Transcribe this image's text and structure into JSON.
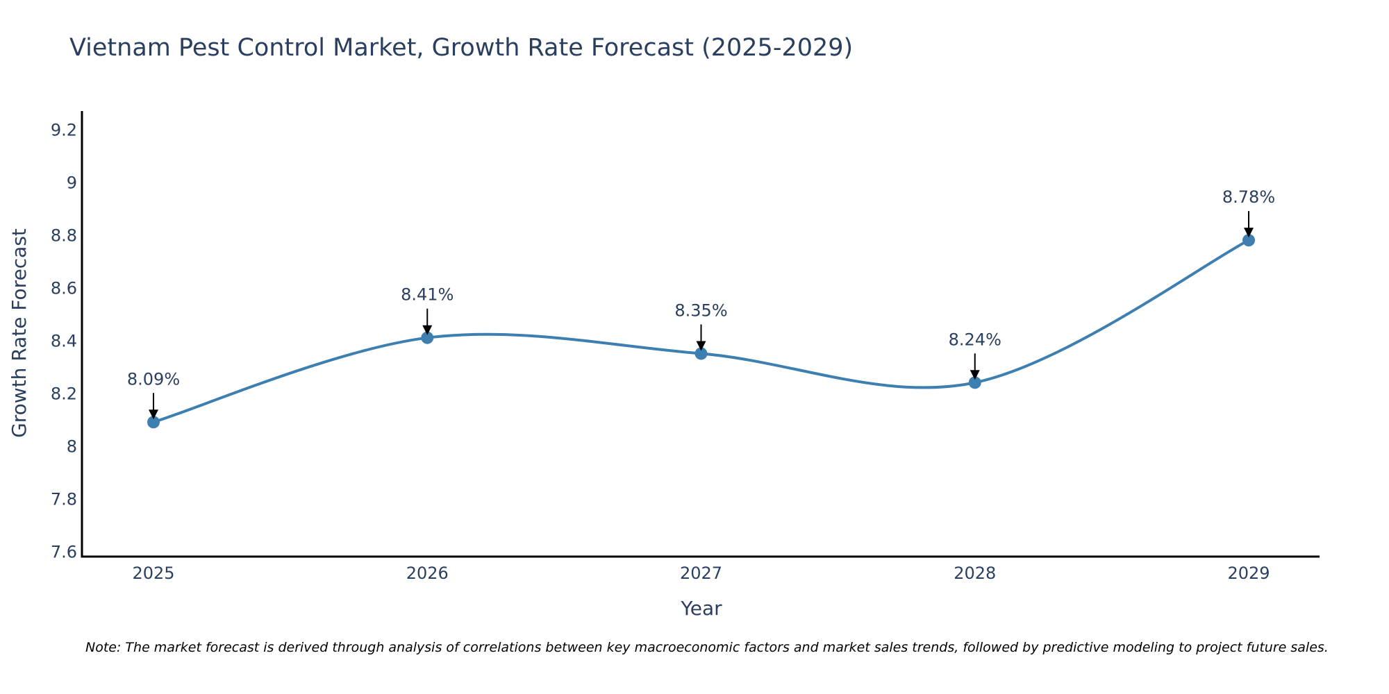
{
  "colors": {
    "line": "#3d7fb0",
    "marker": "#3d7fb0",
    "axis": "#000000",
    "text": "#2a3f5f",
    "arrow": "#000000"
  },
  "chart_data": {
    "type": "line",
    "title": "Vietnam Pest Control Market, Growth Rate Forecast (2025-2029)",
    "xlabel": "Year",
    "ylabel": "Growth Rate Forecast",
    "categories": [
      "2025",
      "2026",
      "2027",
      "2028",
      "2029"
    ],
    "series": [
      {
        "name": "Growth Rate Forecast",
        "values": [
          8.09,
          8.41,
          8.35,
          8.24,
          8.78
        ]
      }
    ],
    "data_labels": [
      "8.09%",
      "8.41%",
      "8.35%",
      "8.24%",
      "8.78%"
    ],
    "ylim": [
      7.58,
      9.27
    ],
    "yticks": [
      7.6,
      7.8,
      8,
      8.2,
      8.4,
      8.6,
      8.8,
      9,
      9.2
    ],
    "ytick_labels": [
      "7.6",
      "7.8",
      "8",
      "8.2",
      "8.4",
      "8.6",
      "8.8",
      "9",
      "9.2"
    ],
    "grid": false,
    "line_shape": "spline"
  },
  "note": "Note: The market forecast is derived through analysis of correlations between key macroeconomic factors and market sales trends, followed by predictive modeling to project future sales."
}
